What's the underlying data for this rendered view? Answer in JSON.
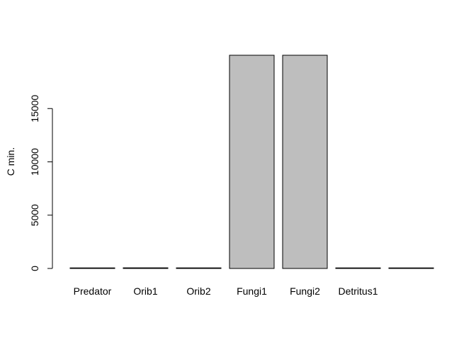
{
  "chart_data": {
    "type": "bar",
    "title": "",
    "xlabel": "",
    "ylabel": "C min.",
    "categories": [
      "Predator",
      "Orib1",
      "Orib2",
      "Fungi1",
      "Fungi2",
      "Detritus1",
      ""
    ],
    "values": [
      5,
      60,
      55,
      20000,
      20000,
      5,
      3
    ],
    "ylim": [
      0,
      20000
    ],
    "yticks": [
      0,
      5000,
      10000,
      15000
    ],
    "ytick_labels": [
      "0",
      "5000",
      "10000",
      "15000"
    ],
    "grid": false,
    "legend": "none",
    "colors": {
      "bar_fill": "#bebebe",
      "bar_stroke": "#000000",
      "axis": "#000000"
    }
  }
}
